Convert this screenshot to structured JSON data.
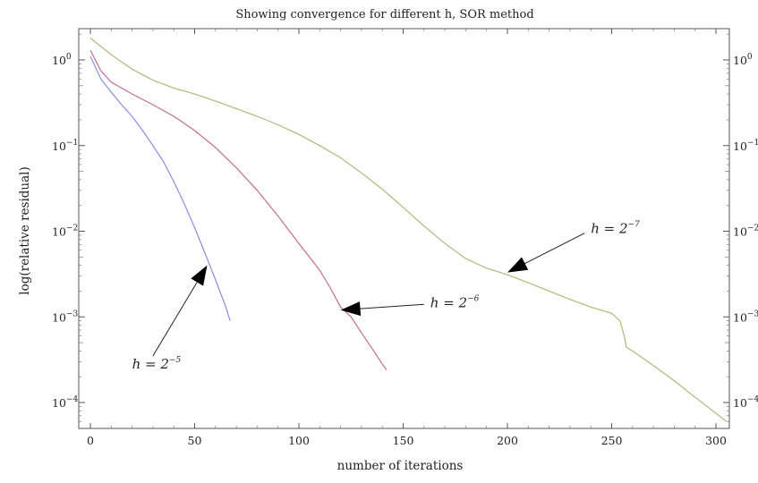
{
  "chart_data": {
    "type": "line",
    "title": "Showing convergence for different h, SOR method",
    "xlabel": "number of iterations",
    "ylabel": "log(relative residual)",
    "xlim": [
      -5,
      310
    ],
    "ylim": [
      5e-05,
      2.4
    ],
    "y_scale": "log",
    "x_ticks": [
      0,
      50,
      100,
      150,
      200,
      250,
      300
    ],
    "y_ticks": [
      {
        "value": 1,
        "base": "10",
        "exp": "0"
      },
      {
        "value": 0.1,
        "base": "10",
        "exp": "−1"
      },
      {
        "value": 0.01,
        "base": "10",
        "exp": "−2"
      },
      {
        "value": 0.001,
        "base": "10",
        "exp": "−3"
      },
      {
        "value": 0.0001,
        "base": "10",
        "exp": "−4"
      }
    ],
    "grid": false,
    "legend": "none",
    "series": [
      {
        "color": "#8c8ce0",
        "x": [
          0,
          5,
          10,
          15,
          20,
          25,
          30,
          35,
          40,
          45,
          50,
          55,
          60,
          65,
          67
        ],
        "y": [
          1.1,
          0.6,
          0.42,
          0.3,
          0.22,
          0.15,
          0.1,
          0.065,
          0.038,
          0.021,
          0.011,
          0.0055,
          0.0027,
          0.0013,
          0.0009
        ]
      },
      {
        "color": "#c46e92",
        "x": [
          0,
          5,
          10,
          20,
          30,
          40,
          50,
          60,
          70,
          80,
          90,
          100,
          110,
          115,
          120,
          125,
          130,
          135,
          140,
          142
        ],
        "y": [
          1.3,
          0.75,
          0.55,
          0.4,
          0.3,
          0.22,
          0.15,
          0.095,
          0.055,
          0.03,
          0.015,
          0.0072,
          0.0035,
          0.0022,
          0.0013,
          0.001,
          0.00065,
          0.00043,
          0.00028,
          0.00024
        ]
      },
      {
        "color": "#b5b57a",
        "x": [
          0,
          10,
          20,
          30,
          40,
          50,
          60,
          70,
          80,
          90,
          100,
          110,
          120,
          130,
          140,
          150,
          160,
          170,
          180,
          190,
          200,
          210,
          220,
          230,
          240,
          250,
          254,
          256,
          257,
          260,
          270,
          280,
          290,
          300,
          305
        ],
        "y": [
          1.8,
          1.15,
          0.78,
          0.58,
          0.47,
          0.4,
          0.33,
          0.27,
          0.22,
          0.175,
          0.135,
          0.1,
          0.072,
          0.048,
          0.031,
          0.019,
          0.0115,
          0.0072,
          0.0048,
          0.0037,
          0.0031,
          0.0025,
          0.002,
          0.0016,
          0.0013,
          0.0011,
          0.0009,
          0.0006,
          0.00044,
          0.0004,
          0.00027,
          0.00018,
          0.000115,
          7.5e-05,
          6e-05
        ]
      }
    ],
    "annotations": [
      {
        "label_base": "h = 2",
        "label_exp": "−5",
        "text_x": 20,
        "text_y": 0.00025,
        "tail_x": 30,
        "tail_y": 0.00035,
        "head_x": 56,
        "head_y": 0.004
      },
      {
        "label_base": "h = 2",
        "label_exp": "−6",
        "text_x": 163,
        "text_y": 0.0013,
        "tail_x": 160,
        "tail_y": 0.0014,
        "head_x": 120,
        "head_y": 0.0012
      },
      {
        "label_base": "h = 2",
        "label_exp": "−7",
        "text_x": 240,
        "text_y": 0.0095,
        "tail_x": 237,
        "tail_y": 0.0095,
        "head_x": 200,
        "head_y": 0.0033
      }
    ]
  }
}
